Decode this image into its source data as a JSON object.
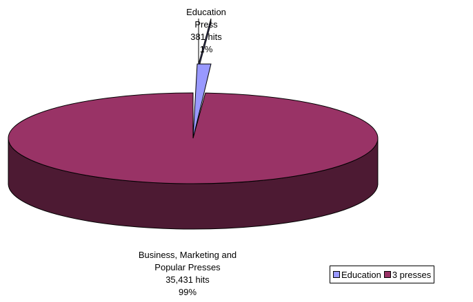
{
  "chart_data": {
    "type": "pie",
    "three_d": true,
    "title": "",
    "slices": [
      {
        "key": "education",
        "legend_label": "Education",
        "label_lines": [
          "Education",
          "Press",
          "381 hits",
          "1%"
        ],
        "hits": 381,
        "percent": 1,
        "top_color": "#9999ff",
        "side_color": "#4d4d80"
      },
      {
        "key": "presses",
        "legend_label": "3 presses",
        "label_lines": [
          "Business, Marketing and",
          "Popular Presses",
          "35,431 hits",
          "99%"
        ],
        "hits": 35431,
        "percent": 99,
        "top_color": "#993366",
        "side_color": "#4d1a33"
      }
    ],
    "legend_position": "bottom-right"
  }
}
